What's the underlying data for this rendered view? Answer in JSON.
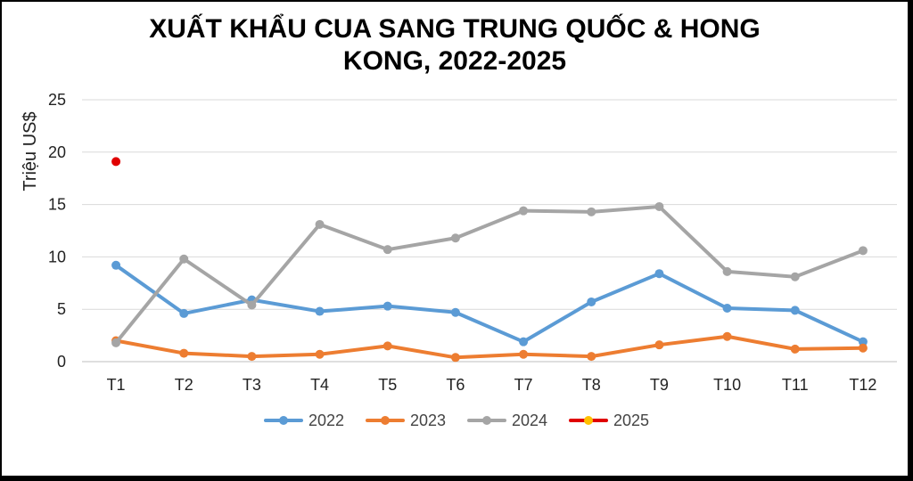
{
  "chart_data": {
    "type": "line",
    "title_lines": [
      "XUẤT KHẨU CUA SANG TRUNG QUỐC & HONG",
      "KONG, 2022-2025"
    ],
    "ylabel": "Triệu US$",
    "xlabel": "",
    "categories": [
      "T1",
      "T2",
      "T3",
      "T4",
      "T5",
      "T6",
      "T7",
      "T8",
      "T9",
      "T10",
      "T11",
      "T12"
    ],
    "ylim": [
      0,
      25
    ],
    "yticks": [
      0,
      5,
      10,
      15,
      20,
      25
    ],
    "grid": true,
    "legend_position": "bottom",
    "series": [
      {
        "name": "2022",
        "color": "#5B9BD5",
        "values": [
          9.2,
          4.6,
          5.9,
          4.8,
          5.3,
          4.7,
          1.9,
          5.7,
          8.4,
          5.1,
          4.9,
          1.9
        ]
      },
      {
        "name": "2023",
        "color": "#ED7D31",
        "values": [
          2.0,
          0.8,
          0.5,
          0.7,
          1.5,
          0.4,
          0.7,
          0.5,
          1.6,
          2.4,
          1.2,
          1.3
        ]
      },
      {
        "name": "2024",
        "color": "#A5A5A5",
        "values": [
          1.8,
          9.8,
          5.4,
          13.1,
          10.7,
          11.8,
          14.4,
          14.3,
          14.8,
          8.6,
          8.1,
          10.6
        ]
      },
      {
        "name": "2025",
        "color": "#E00000",
        "marker_fill": "#FFC000",
        "values": [
          19.1,
          null,
          null,
          null,
          null,
          null,
          null,
          null,
          null,
          null,
          null,
          null
        ]
      }
    ]
  }
}
